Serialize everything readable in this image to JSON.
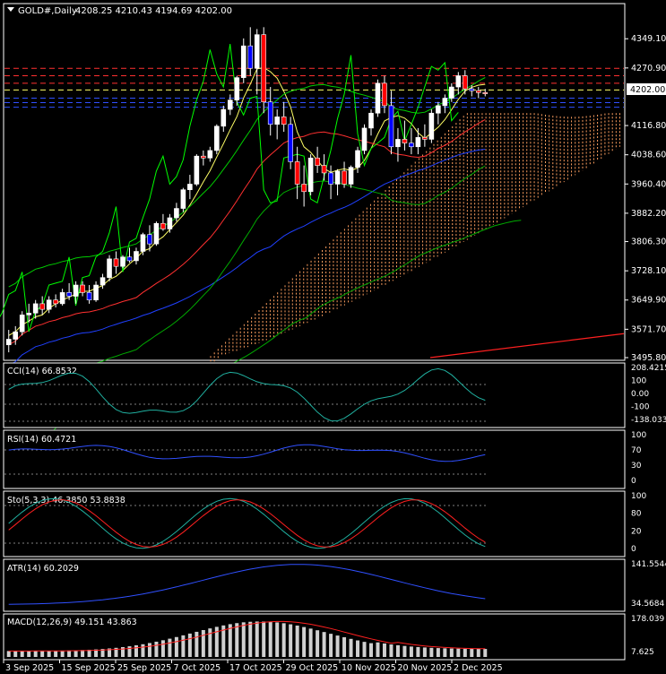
{
  "window": {
    "title": "GOLD#,Daily",
    "ohlc": "4208.25 4210.43 4194.69 4202.00"
  },
  "colors": {
    "background": "#000000",
    "frame": "#ffffff",
    "bull_candle": "#ffffff",
    "bear_candle": "#ff0000",
    "bear_candle_alt": "#0000ff",
    "ichimoku_cloud": "#ffa060",
    "bollinger": "#00cc00",
    "price_tag_bg": "#ffffff"
  },
  "main": {
    "price_labels": [
      "4349.10",
      "4270.90",
      "4116.80",
      "4038.60",
      "3960.40",
      "3882.20",
      "3806.30",
      "3728.10",
      "3649.90",
      "3571.70",
      "3495.80"
    ],
    "current_price": "4202.00"
  },
  "indicators": {
    "cci": {
      "label": "CCI(14) 66.8532",
      "axis": [
        "208.4215",
        "100",
        "0.00",
        "-100",
        "-138.0339"
      ]
    },
    "rsi": {
      "label": "RSI(14) 60.4721",
      "axis": [
        "100",
        "70",
        "30",
        "0"
      ]
    },
    "stoch": {
      "label": "Sto(5,3,3) 46.3850 53.8838",
      "axis": [
        "100",
        "80",
        "20",
        "0"
      ]
    },
    "atr": {
      "label": "ATR(14) 60.2029",
      "axis": [
        "141.5544",
        "34.5684"
      ]
    },
    "macd": {
      "label": "MACD(12,26,9) 49.151 43.863",
      "axis": [
        "178.039",
        "7.625"
      ]
    }
  },
  "time_axis": [
    "3 Sep 2025",
    "15 Sep 2025",
    "25 Sep 2025",
    "7 Oct 2025",
    "17 Oct 2025",
    "29 Oct 2025",
    "10 Nov 2025",
    "20 Nov 2025",
    "2 Dec 2025"
  ],
  "chart_data": {
    "type": "candlestick",
    "symbol": "GOLD#",
    "timeframe": "Daily",
    "price_range": [
      3495.8,
      4400
    ],
    "candles": [
      [
        3530,
        3570,
        3510,
        3545
      ],
      [
        3545,
        3580,
        3530,
        3565
      ],
      [
        3565,
        3620,
        3555,
        3610
      ],
      [
        3610,
        3640,
        3590,
        3615
      ],
      [
        3615,
        3650,
        3600,
        3640
      ],
      [
        3640,
        3660,
        3610,
        3625
      ],
      [
        3625,
        3660,
        3615,
        3650
      ],
      [
        3650,
        3665,
        3630,
        3640
      ],
      [
        3640,
        3680,
        3635,
        3670
      ],
      [
        3670,
        3695,
        3650,
        3660
      ],
      [
        3660,
        3700,
        3640,
        3690
      ],
      [
        3690,
        3700,
        3660,
        3670
      ],
      [
        3670,
        3690,
        3640,
        3650
      ],
      [
        3650,
        3700,
        3645,
        3690
      ],
      [
        3690,
        3720,
        3680,
        3710
      ],
      [
        3710,
        3770,
        3700,
        3760
      ],
      [
        3760,
        3780,
        3720,
        3740
      ],
      [
        3740,
        3770,
        3735,
        3765
      ],
      [
        3765,
        3790,
        3750,
        3755
      ],
      [
        3755,
        3790,
        3745,
        3780
      ],
      [
        3780,
        3830,
        3770,
        3825
      ],
      [
        3825,
        3850,
        3780,
        3800
      ],
      [
        3800,
        3860,
        3795,
        3855
      ],
      [
        3855,
        3880,
        3835,
        3840
      ],
      [
        3840,
        3880,
        3830,
        3870
      ],
      [
        3870,
        3910,
        3860,
        3895
      ],
      [
        3895,
        3950,
        3885,
        3945
      ],
      [
        3945,
        3985,
        3920,
        3960
      ],
      [
        3960,
        4040,
        3955,
        4035
      ],
      [
        4035,
        4050,
        4010,
        4030
      ],
      [
        4030,
        4060,
        4020,
        4050
      ],
      [
        4050,
        4120,
        4040,
        4115
      ],
      [
        4115,
        4170,
        4100,
        4160
      ],
      [
        4160,
        4200,
        4145,
        4185
      ],
      [
        4185,
        4250,
        4170,
        4245
      ],
      [
        4245,
        4350,
        4230,
        4330
      ],
      [
        4330,
        4380,
        4250,
        4270
      ],
      [
        4270,
        4375,
        4200,
        4360
      ],
      [
        4360,
        4380,
        4150,
        4180
      ],
      [
        4180,
        4220,
        4090,
        4120
      ],
      [
        4120,
        4160,
        4080,
        4140
      ],
      [
        4140,
        4180,
        4100,
        4120
      ],
      [
        4120,
        4140,
        4000,
        4020
      ],
      [
        4020,
        4060,
        3920,
        3960
      ],
      [
        3960,
        4010,
        3900,
        3940
      ],
      [
        3940,
        4040,
        3930,
        4030
      ],
      [
        4030,
        4060,
        3990,
        4010
      ],
      [
        4010,
        4040,
        3970,
        3990
      ],
      [
        3990,
        4010,
        3920,
        3960
      ],
      [
        3960,
        4000,
        3930,
        3995
      ],
      [
        3995,
        4020,
        3950,
        3960
      ],
      [
        3960,
        4010,
        3950,
        4005
      ],
      [
        4005,
        4060,
        3990,
        4050
      ],
      [
        4050,
        4120,
        4040,
        4110
      ],
      [
        4110,
        4160,
        4090,
        4150
      ],
      [
        4150,
        4240,
        4140,
        4230
      ],
      [
        4230,
        4250,
        4150,
        4170
      ],
      [
        4170,
        4210,
        4040,
        4060
      ],
      [
        4060,
        4110,
        4020,
        4080
      ],
      [
        4080,
        4130,
        4050,
        4070
      ],
      [
        4070,
        4110,
        4040,
        4060
      ],
      [
        4060,
        4110,
        4040,
        4085
      ],
      [
        4085,
        4120,
        4060,
        4080
      ],
      [
        4080,
        4160,
        4070,
        4150
      ],
      [
        4150,
        4180,
        4120,
        4170
      ],
      [
        4170,
        4200,
        4150,
        4190
      ],
      [
        4190,
        4230,
        4180,
        4220
      ],
      [
        4220,
        4260,
        4200,
        4250
      ],
      [
        4250,
        4265,
        4200,
        4215
      ],
      [
        4215,
        4225,
        4195,
        4210
      ],
      [
        4210,
        4220,
        4190,
        4205
      ],
      [
        4205,
        4215,
        4195,
        4202
      ]
    ]
  }
}
